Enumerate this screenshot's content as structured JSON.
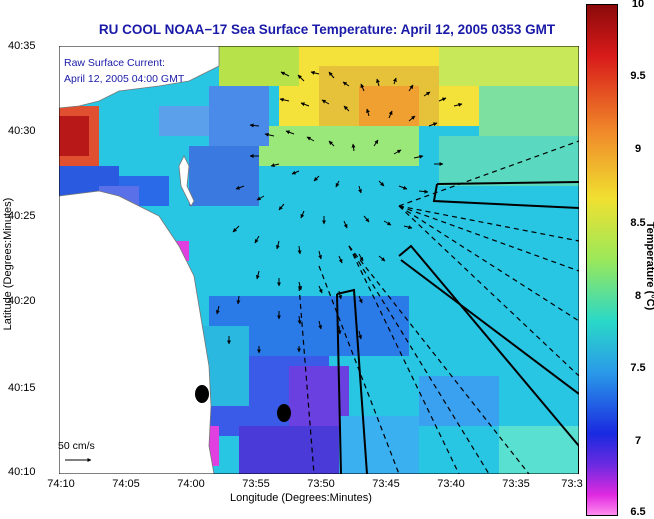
{
  "title": "RU COOL  NOAA−17  Sea Surface Temperature:  April 12, 2005 0353 GMT",
  "overlay": {
    "line1": "Raw Surface Current:",
    "line2": "April 12, 2005 04:00 GMT"
  },
  "scale_label": "50 cm/s",
  "axes": {
    "xlabel": "Longitude (Degrees:Minutes)",
    "ylabel": "Latitude (Degrees:Minutes)",
    "xticks": [
      "74:10",
      "74:05",
      "74:00",
      "73:55",
      "73:50",
      "73:45",
      "73:40",
      "73:35",
      "73:3"
    ],
    "yticks": [
      "40:35",
      "40:30",
      "40:25",
      "40:20",
      "40:15",
      "40:10"
    ]
  },
  "colorbar": {
    "label": "Temperature (°C)",
    "ticks": [
      "10",
      "9.5",
      "9",
      "8.5",
      "8",
      "7.5",
      "7",
      "6.5"
    ],
    "min": 6.5,
    "max": 10
  },
  "colors": {
    "title": "#1a1aa8",
    "land": "#ffffff",
    "water": "#23c9df"
  }
}
